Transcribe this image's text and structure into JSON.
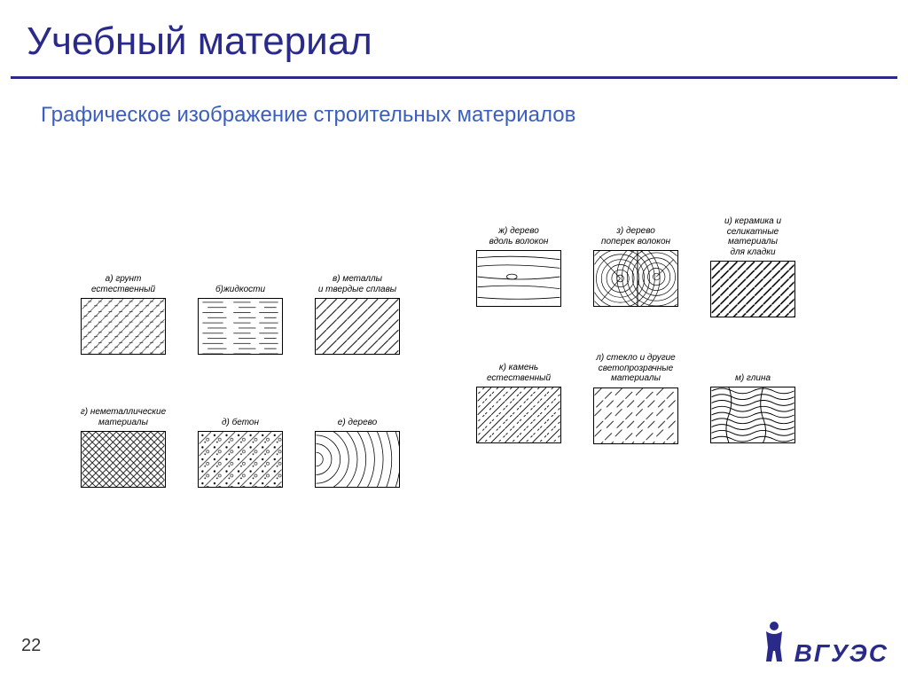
{
  "colors": {
    "title": "#2a2a8a",
    "subtitle": "#3b5fbf",
    "text": "#333333",
    "rule": "#2a2a8a",
    "swatch_stroke": "#000000",
    "background": "#ffffff"
  },
  "title": "Учебный материал",
  "subtitle": "Графическое изображение строительных материалов",
  "page_number": "22",
  "logo_text": "ВГУЭС",
  "swatches_left": [
    {
      "id": "a",
      "caption": "а) грунт естественный",
      "pattern": "soil"
    },
    {
      "id": "b",
      "caption": "б)жидкости",
      "pattern": "liquid"
    },
    {
      "id": "v",
      "caption": "в)  металлы\nи твердые сплавы",
      "pattern": "metal"
    },
    {
      "id": "g",
      "caption": "г) неметаллические\nматериалы",
      "pattern": "crosshatch"
    },
    {
      "id": "d",
      "caption": "д) бетон",
      "pattern": "concrete"
    },
    {
      "id": "e",
      "caption": "е) дерево",
      "pattern": "wood-arc"
    }
  ],
  "swatches_right": [
    {
      "id": "zh",
      "caption": "ж) дерево\nвдоль волокон",
      "pattern": "wood-long"
    },
    {
      "id": "z",
      "caption": "з) дерево\nпоперек волокон",
      "pattern": "wood-cross"
    },
    {
      "id": "i",
      "caption": "и) керамика и\nселикатные\nматериалы\nдля кладки",
      "pattern": "ceramic"
    },
    {
      "id": "k",
      "caption": "к) камень\nестественный",
      "pattern": "stone"
    },
    {
      "id": "l",
      "caption": "л) стекло и другие\nсветопрозрачные\nматериалы",
      "pattern": "glass"
    },
    {
      "id": "m",
      "caption": "м) глина",
      "pattern": "clay"
    }
  ]
}
